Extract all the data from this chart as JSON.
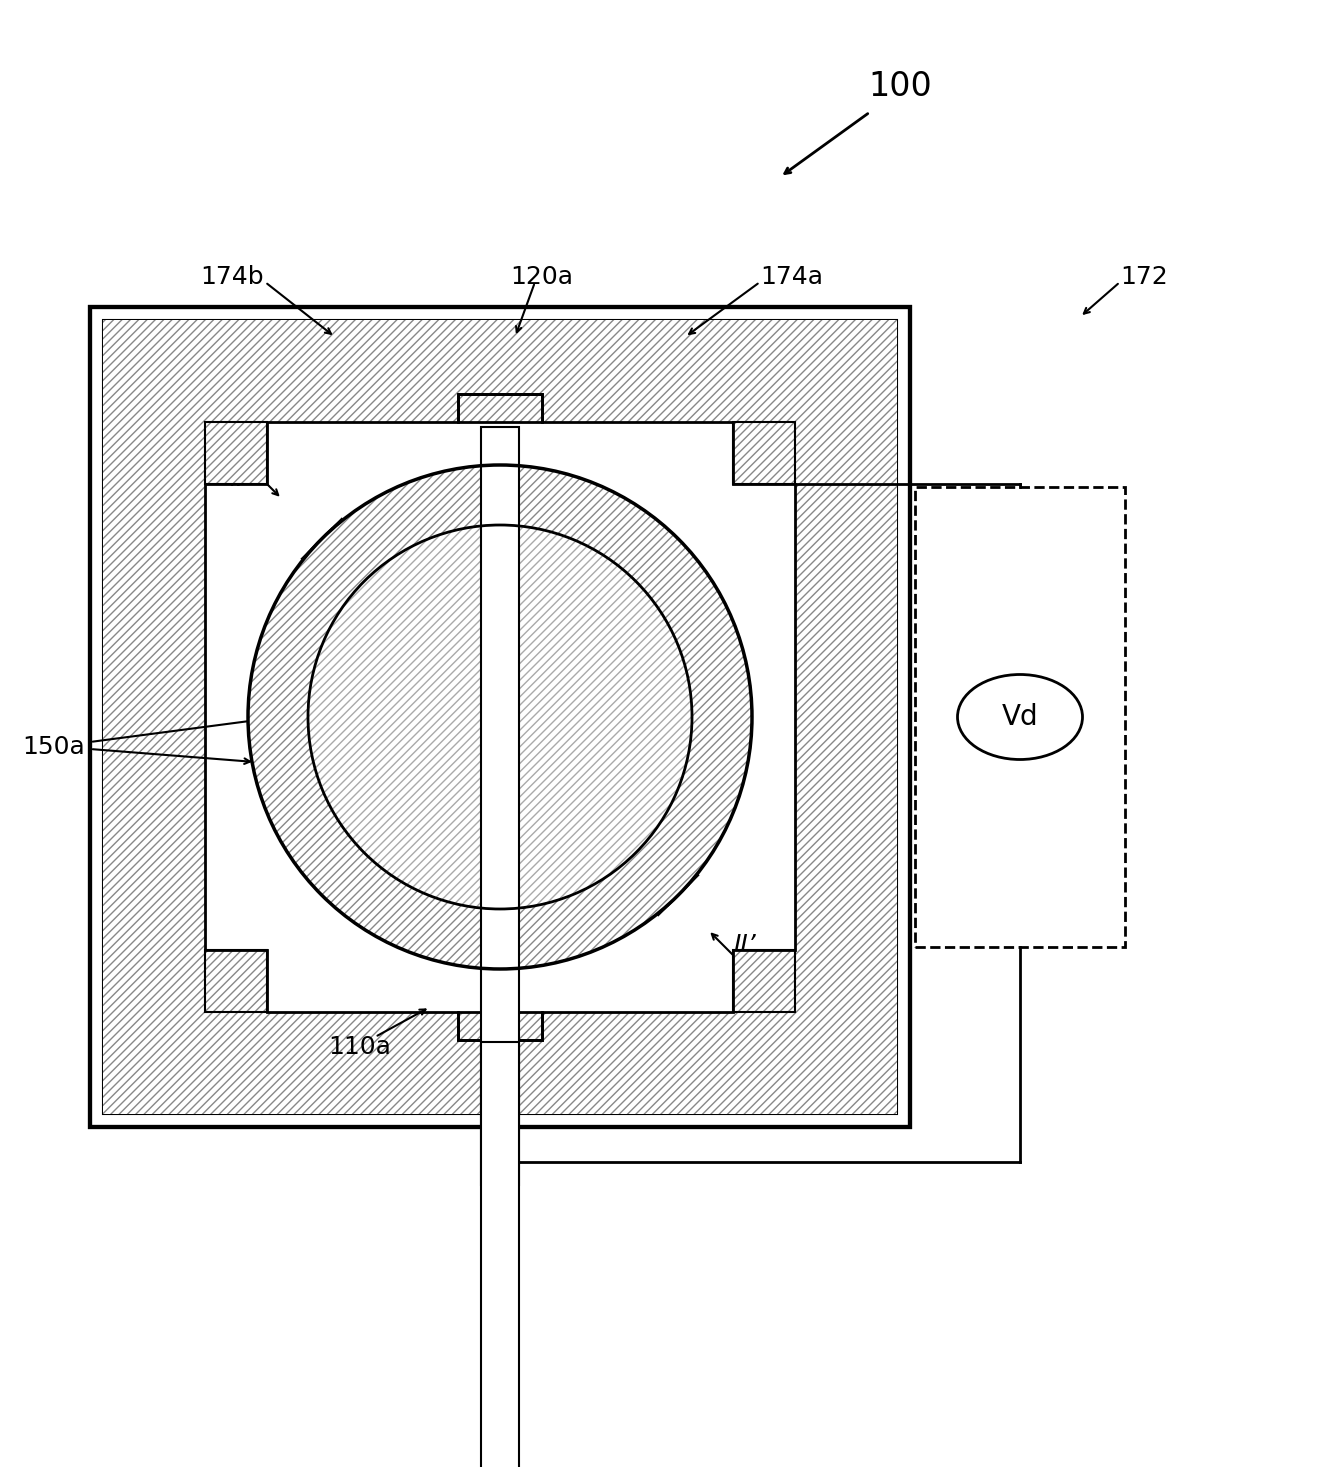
{
  "bg_color": "#ffffff",
  "line_color": "#000000",
  "label_100": "100",
  "label_172": "172",
  "label_174a": "174a",
  "label_174b": "174b",
  "label_120a": "120a",
  "label_110a": "110a",
  "label_150a": "150a",
  "label_Vd": "Vd",
  "label_II": "II",
  "label_IIp": "II’",
  "fs_main": 18,
  "fs_big": 22,
  "fs_vd": 20,
  "fig_w": 13.27,
  "fig_h": 14.67,
  "dpi": 100
}
